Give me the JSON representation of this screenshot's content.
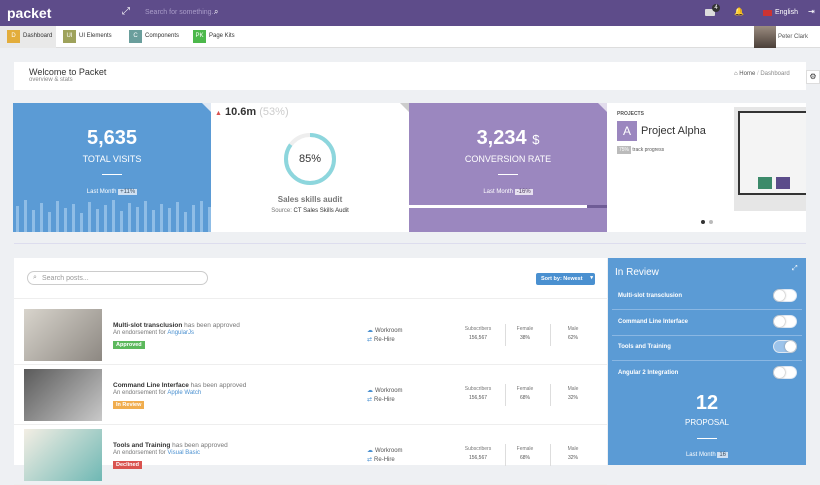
{
  "topbar": {
    "logo": "packet",
    "search_placeholder": "Search for something...",
    "notifications": "4",
    "language": "English"
  },
  "nav": {
    "items": [
      {
        "badge": "D",
        "label": "Dashboard",
        "color": "#e3ad3b"
      },
      {
        "badge": "UI",
        "label": "UI Elements",
        "color": "#9ea25b"
      },
      {
        "badge": "C",
        "label": "Components",
        "color": "#6a9e9c"
      },
      {
        "badge": "PK",
        "label": "Page Kits",
        "color": "#4cb84b"
      }
    ],
    "user": "Peter Clark"
  },
  "header": {
    "title": "Welcome to Packet",
    "subtitle": "overview & stats",
    "breadcrumb": [
      "Home",
      "Dashboard"
    ]
  },
  "stats": {
    "visits": {
      "value": "5,635",
      "label": "TOTAL VISITS",
      "period": "Last Month",
      "change": "+11%"
    },
    "audit": {
      "value": "10.6m",
      "percent": "(53%)",
      "donut": {
        "value": 85,
        "label": "85%"
      },
      "title": "Sales skills audit",
      "source_label": "Source:",
      "source": "CT Sales Skills Audit"
    },
    "conversion": {
      "value": "3,234",
      "unit": "$",
      "label": "CONVERSION RATE",
      "period": "Last Month",
      "change": "-16%"
    },
    "project": {
      "heading": "PROJECTS",
      "initial": "A",
      "name": "Project Alpha",
      "progress": "75%",
      "progress_label": "track progress"
    }
  },
  "posts": {
    "search_placeholder": "Search posts...",
    "sort": "Sort by: Newest",
    "rows": [
      {
        "title": "Multi-slot transclusion",
        "action": "has been approved",
        "endorse": "An endorsement for",
        "tech": "AngularJs",
        "status": {
          "label": "Approved",
          "color": "#5cb85c"
        },
        "links": [
          "Workroom",
          "Re-Hire"
        ],
        "stats": [
          [
            "Subscribers",
            "156,567"
          ],
          [
            "Female",
            "38%"
          ],
          [
            "Male",
            "62%"
          ]
        ]
      },
      {
        "title": "Command Line Interface",
        "action": "has been approved",
        "endorse": "An endorsement for",
        "tech": "Apple Watch",
        "status": {
          "label": "In Review",
          "color": "#f0ad4e"
        },
        "links": [
          "Workroom",
          "Re-Hire"
        ],
        "stats": [
          [
            "Subscribers",
            "156,567"
          ],
          [
            "Female",
            "68%"
          ],
          [
            "Male",
            "32%"
          ]
        ]
      },
      {
        "title": "Tools and Training",
        "action": "has been approved",
        "endorse": "An endorsement for",
        "tech": "Visual Basic",
        "status": {
          "label": "Declined",
          "color": "#d9534f"
        },
        "links": [
          "Workroom",
          "Re-Hire"
        ],
        "stats": [
          [
            "Subscribers",
            "156,567"
          ],
          [
            "Female",
            "68%"
          ],
          [
            "Male",
            "32%"
          ]
        ]
      }
    ]
  },
  "review": {
    "title": "In Review",
    "items": [
      {
        "label": "Multi-slot transclusion",
        "on": false
      },
      {
        "label": "Command Line Interface",
        "on": false
      },
      {
        "label": "Tools and Training",
        "on": true
      },
      {
        "label": "Angular 2 Integration",
        "on": false
      }
    ],
    "count": "12",
    "count_label": "PROPOSAL",
    "period": "Last Month",
    "badge": "16"
  }
}
